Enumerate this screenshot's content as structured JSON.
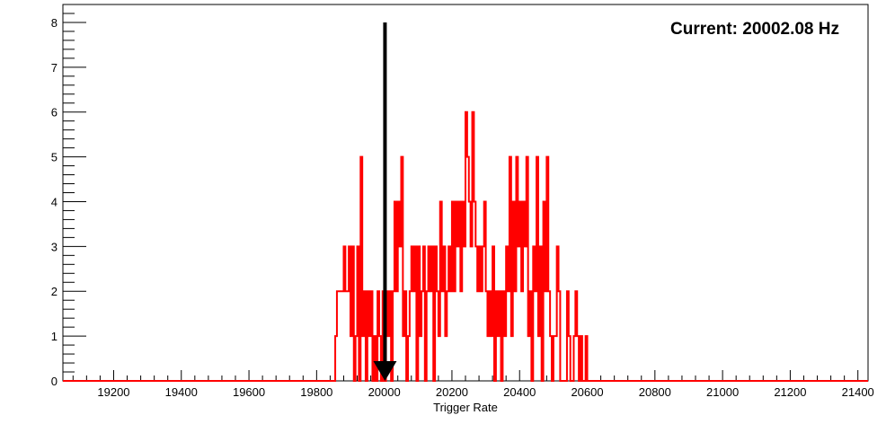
{
  "chart_data": {
    "type": "histogram",
    "title": "",
    "xlabel": "Trigger Rate",
    "ylabel": "",
    "xlim": [
      19050,
      21430
    ],
    "ylim": [
      0,
      8.4
    ],
    "x_ticks": [
      19200,
      19400,
      19600,
      19800,
      20000,
      20200,
      20400,
      20600,
      20800,
      21000,
      21200,
      21400
    ],
    "y_ticks": [
      0,
      1,
      2,
      3,
      4,
      5,
      6,
      7,
      8
    ],
    "annotation": "Current: 20002.08 Hz",
    "marker": {
      "x": 20002.08,
      "y_top": 8,
      "y_bottom": 0,
      "color": "#000000"
    },
    "series": [
      {
        "color": "#ff0000",
        "bins": [
          [
            19855,
            1
          ],
          [
            19860,
            2
          ],
          [
            19880,
            3
          ],
          [
            19885,
            2
          ],
          [
            19895,
            3
          ],
          [
            19900,
            1
          ],
          [
            19905,
            3
          ],
          [
            19910,
            0
          ],
          [
            19915,
            1
          ],
          [
            19920,
            3
          ],
          [
            19925,
            0
          ],
          [
            19930,
            5
          ],
          [
            19935,
            1
          ],
          [
            19940,
            2
          ],
          [
            19945,
            0
          ],
          [
            19950,
            2
          ],
          [
            19955,
            1
          ],
          [
            19960,
            2
          ],
          [
            19965,
            0
          ],
          [
            19970,
            1
          ],
          [
            19975,
            0
          ],
          [
            19980,
            2
          ],
          [
            19985,
            1
          ],
          [
            19990,
            0
          ],
          [
            19995,
            2
          ],
          [
            20000,
            0
          ],
          [
            20005,
            2
          ],
          [
            20010,
            1
          ],
          [
            20015,
            2
          ],
          [
            20020,
            0
          ],
          [
            20025,
            2
          ],
          [
            20030,
            4
          ],
          [
            20035,
            2
          ],
          [
            20040,
            4
          ],
          [
            20045,
            3
          ],
          [
            20050,
            5
          ],
          [
            20055,
            1
          ],
          [
            20060,
            2
          ],
          [
            20065,
            0
          ],
          [
            20070,
            1
          ],
          [
            20075,
            2
          ],
          [
            20080,
            3
          ],
          [
            20085,
            2
          ],
          [
            20090,
            3
          ],
          [
            20095,
            0
          ],
          [
            20100,
            3
          ],
          [
            20105,
            1
          ],
          [
            20110,
            2
          ],
          [
            20115,
            3
          ],
          [
            20120,
            0
          ],
          [
            20125,
            2
          ],
          [
            20130,
            3
          ],
          [
            20135,
            2
          ],
          [
            20140,
            3
          ],
          [
            20145,
            0
          ],
          [
            20150,
            3
          ],
          [
            20155,
            2
          ],
          [
            20160,
            1
          ],
          [
            20165,
            4
          ],
          [
            20170,
            2
          ],
          [
            20175,
            3
          ],
          [
            20180,
            1
          ],
          [
            20185,
            2
          ],
          [
            20190,
            3
          ],
          [
            20195,
            2
          ],
          [
            20200,
            4
          ],
          [
            20205,
            2
          ],
          [
            20210,
            4
          ],
          [
            20215,
            3
          ],
          [
            20220,
            4
          ],
          [
            20225,
            2
          ],
          [
            20230,
            4
          ],
          [
            20235,
            3
          ],
          [
            20240,
            6
          ],
          [
            20245,
            5
          ],
          [
            20250,
            4
          ],
          [
            20255,
            3
          ],
          [
            20260,
            6
          ],
          [
            20265,
            4
          ],
          [
            20270,
            3
          ],
          [
            20275,
            2
          ],
          [
            20280,
            3
          ],
          [
            20285,
            2
          ],
          [
            20290,
            3
          ],
          [
            20295,
            4
          ],
          [
            20300,
            2
          ],
          [
            20305,
            1
          ],
          [
            20310,
            2
          ],
          [
            20315,
            1
          ],
          [
            20320,
            3
          ],
          [
            20325,
            0
          ],
          [
            20330,
            2
          ],
          [
            20335,
            1
          ],
          [
            20340,
            2
          ],
          [
            20345,
            0
          ],
          [
            20350,
            2
          ],
          [
            20355,
            1
          ],
          [
            20360,
            3
          ],
          [
            20365,
            2
          ],
          [
            20370,
            5
          ],
          [
            20375,
            1
          ],
          [
            20380,
            4
          ],
          [
            20385,
            2
          ],
          [
            20390,
            5
          ],
          [
            20395,
            3
          ],
          [
            20400,
            4
          ],
          [
            20405,
            2
          ],
          [
            20410,
            4
          ],
          [
            20415,
            3
          ],
          [
            20420,
            5
          ],
          [
            20425,
            1
          ],
          [
            20430,
            2
          ],
          [
            20435,
            0
          ],
          [
            20440,
            3
          ],
          [
            20445,
            2
          ],
          [
            20450,
            5
          ],
          [
            20455,
            1
          ],
          [
            20460,
            3
          ],
          [
            20465,
            0
          ],
          [
            20470,
            4
          ],
          [
            20475,
            2
          ],
          [
            20480,
            5
          ],
          [
            20485,
            2
          ],
          [
            20490,
            1
          ],
          [
            20495,
            0
          ],
          [
            20500,
            1
          ],
          [
            20505,
            1
          ],
          [
            20510,
            3
          ],
          [
            20515,
            2
          ],
          [
            20520,
            0
          ],
          [
            20530,
            0
          ],
          [
            20540,
            2
          ],
          [
            20545,
            1
          ],
          [
            20550,
            0
          ],
          [
            20555,
            0
          ],
          [
            20560,
            1
          ],
          [
            20565,
            2
          ],
          [
            20570,
            1
          ],
          [
            20575,
            0
          ],
          [
            20580,
            1
          ],
          [
            20585,
            0
          ],
          [
            20590,
            0
          ],
          [
            20595,
            1
          ],
          [
            20600,
            0
          ]
        ]
      }
    ]
  }
}
